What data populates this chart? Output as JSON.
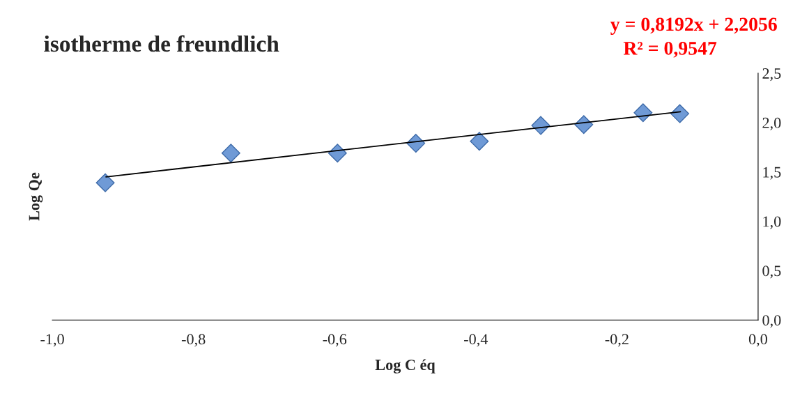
{
  "chart_data": {
    "type": "scatter",
    "title": "isotherme de freundlich",
    "xlabel": "Log C éq",
    "ylabel": "Log Qe",
    "xlim": [
      -1.0,
      0.0
    ],
    "ylim": [
      0.0,
      2.5
    ],
    "xticks": [
      {
        "value": -1.0,
        "label": "-1,0"
      },
      {
        "value": -0.8,
        "label": "-0,8"
      },
      {
        "value": -0.6,
        "label": "-0,6"
      },
      {
        "value": -0.4,
        "label": "-0,4"
      },
      {
        "value": -0.2,
        "label": "-0,2"
      },
      {
        "value": 0.0,
        "label": "0,0"
      }
    ],
    "yticks": [
      {
        "value": 0.0,
        "label": "0,0"
      },
      {
        "value": 0.5,
        "label": "0,5"
      },
      {
        "value": 1.0,
        "label": "1,0"
      },
      {
        "value": 1.5,
        "label": "1,5"
      },
      {
        "value": 2.0,
        "label": "2,0"
      },
      {
        "value": 2.5,
        "label": "2,5"
      }
    ],
    "grid": false,
    "annotations": [
      "y = 0,8192x + 2,2056",
      "R² = 0,9547"
    ],
    "series": [
      {
        "marker": "diamond",
        "color": "#6f9ad6",
        "x": [
          -0.925,
          -0.747,
          -0.596,
          -0.485,
          -0.395,
          -0.308,
          -0.247,
          -0.163,
          -0.111
        ],
        "values": [
          1.39,
          1.69,
          1.69,
          1.79,
          1.81,
          1.97,
          1.98,
          2.1,
          2.09
        ]
      },
      {
        "type": "line",
        "marker": "none",
        "color": "#000000",
        "x": [
          -0.924,
          -0.11
        ],
        "values": [
          1.45,
          2.11
        ]
      }
    ]
  }
}
